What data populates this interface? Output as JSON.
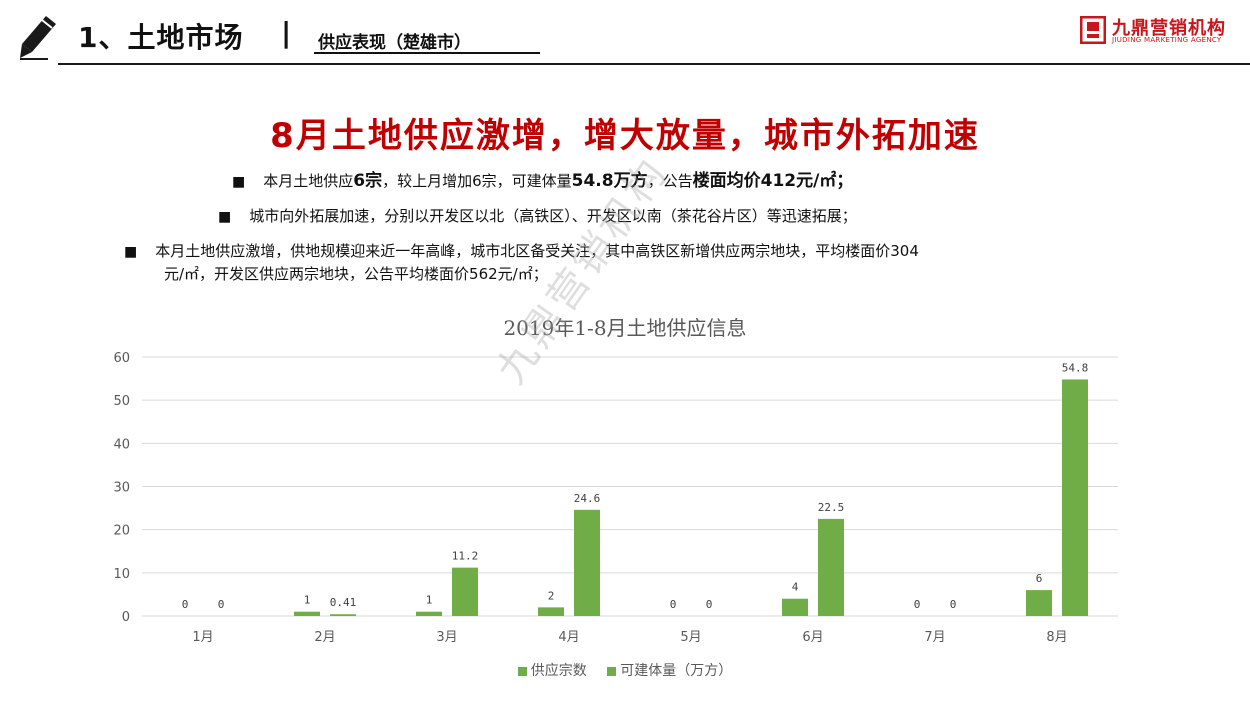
{
  "header": {
    "section_title": "1、土地市场",
    "separator": "|",
    "subtitle": "供应表现（楚雄市）",
    "logo_cn": "九鼎营销机构",
    "logo_en": "JIUDING MARKETING AGENCY",
    "accent_color": "#c8161d"
  },
  "headline": "8月土地供应激增，增大放量，城市外拓加速",
  "bullets": [
    {
      "marker": "■",
      "parts": [
        "本月土地供应",
        "6宗",
        "，较上月增加6宗，可建体量",
        "54.8万方",
        "，公告",
        "楼面均价412元/㎡；"
      ]
    },
    {
      "marker": "■",
      "text": "城市向外拓展加速，分别以开发区以北（高铁区）、开发区以南（茶花谷片区）等迅速拓展；"
    },
    {
      "marker": "■",
      "line1": "本月土地供应激增，供地规模迎来近一年高峰，城市北区备受关注，其中高铁区新增供应两宗地块，平均楼面价304",
      "line2": "元/㎡，开发区供应两宗地块，公告平均楼面价562元/㎡；"
    }
  ],
  "watermark": "九鼎营销机构",
  "chart_data": {
    "type": "bar",
    "title": "2019年1-8月土地供应信息",
    "categories": [
      "1月",
      "2月",
      "3月",
      "4月",
      "5月",
      "6月",
      "7月",
      "8月"
    ],
    "series": [
      {
        "name": "供应宗数",
        "values": [
          0,
          1,
          1,
          2,
          0,
          4,
          0,
          6
        ],
        "labels": [
          "0",
          "1",
          "1",
          "2",
          "0",
          "4",
          "0",
          "6"
        ],
        "color": "#70ad47"
      },
      {
        "name": "可建体量（万方）",
        "values": [
          0,
          0.41,
          11.2,
          24.6,
          0,
          22.5,
          0,
          54.8
        ],
        "labels": [
          "0",
          "0.41",
          "11.2",
          "24.6",
          "0",
          "22.5",
          "0",
          "54.8"
        ],
        "color": "#70ad47"
      }
    ],
    "ylim": [
      0,
      60
    ],
    "yticks": [
      0,
      10,
      20,
      30,
      40,
      50,
      60
    ],
    "grid": true,
    "legend_position": "bottom"
  }
}
